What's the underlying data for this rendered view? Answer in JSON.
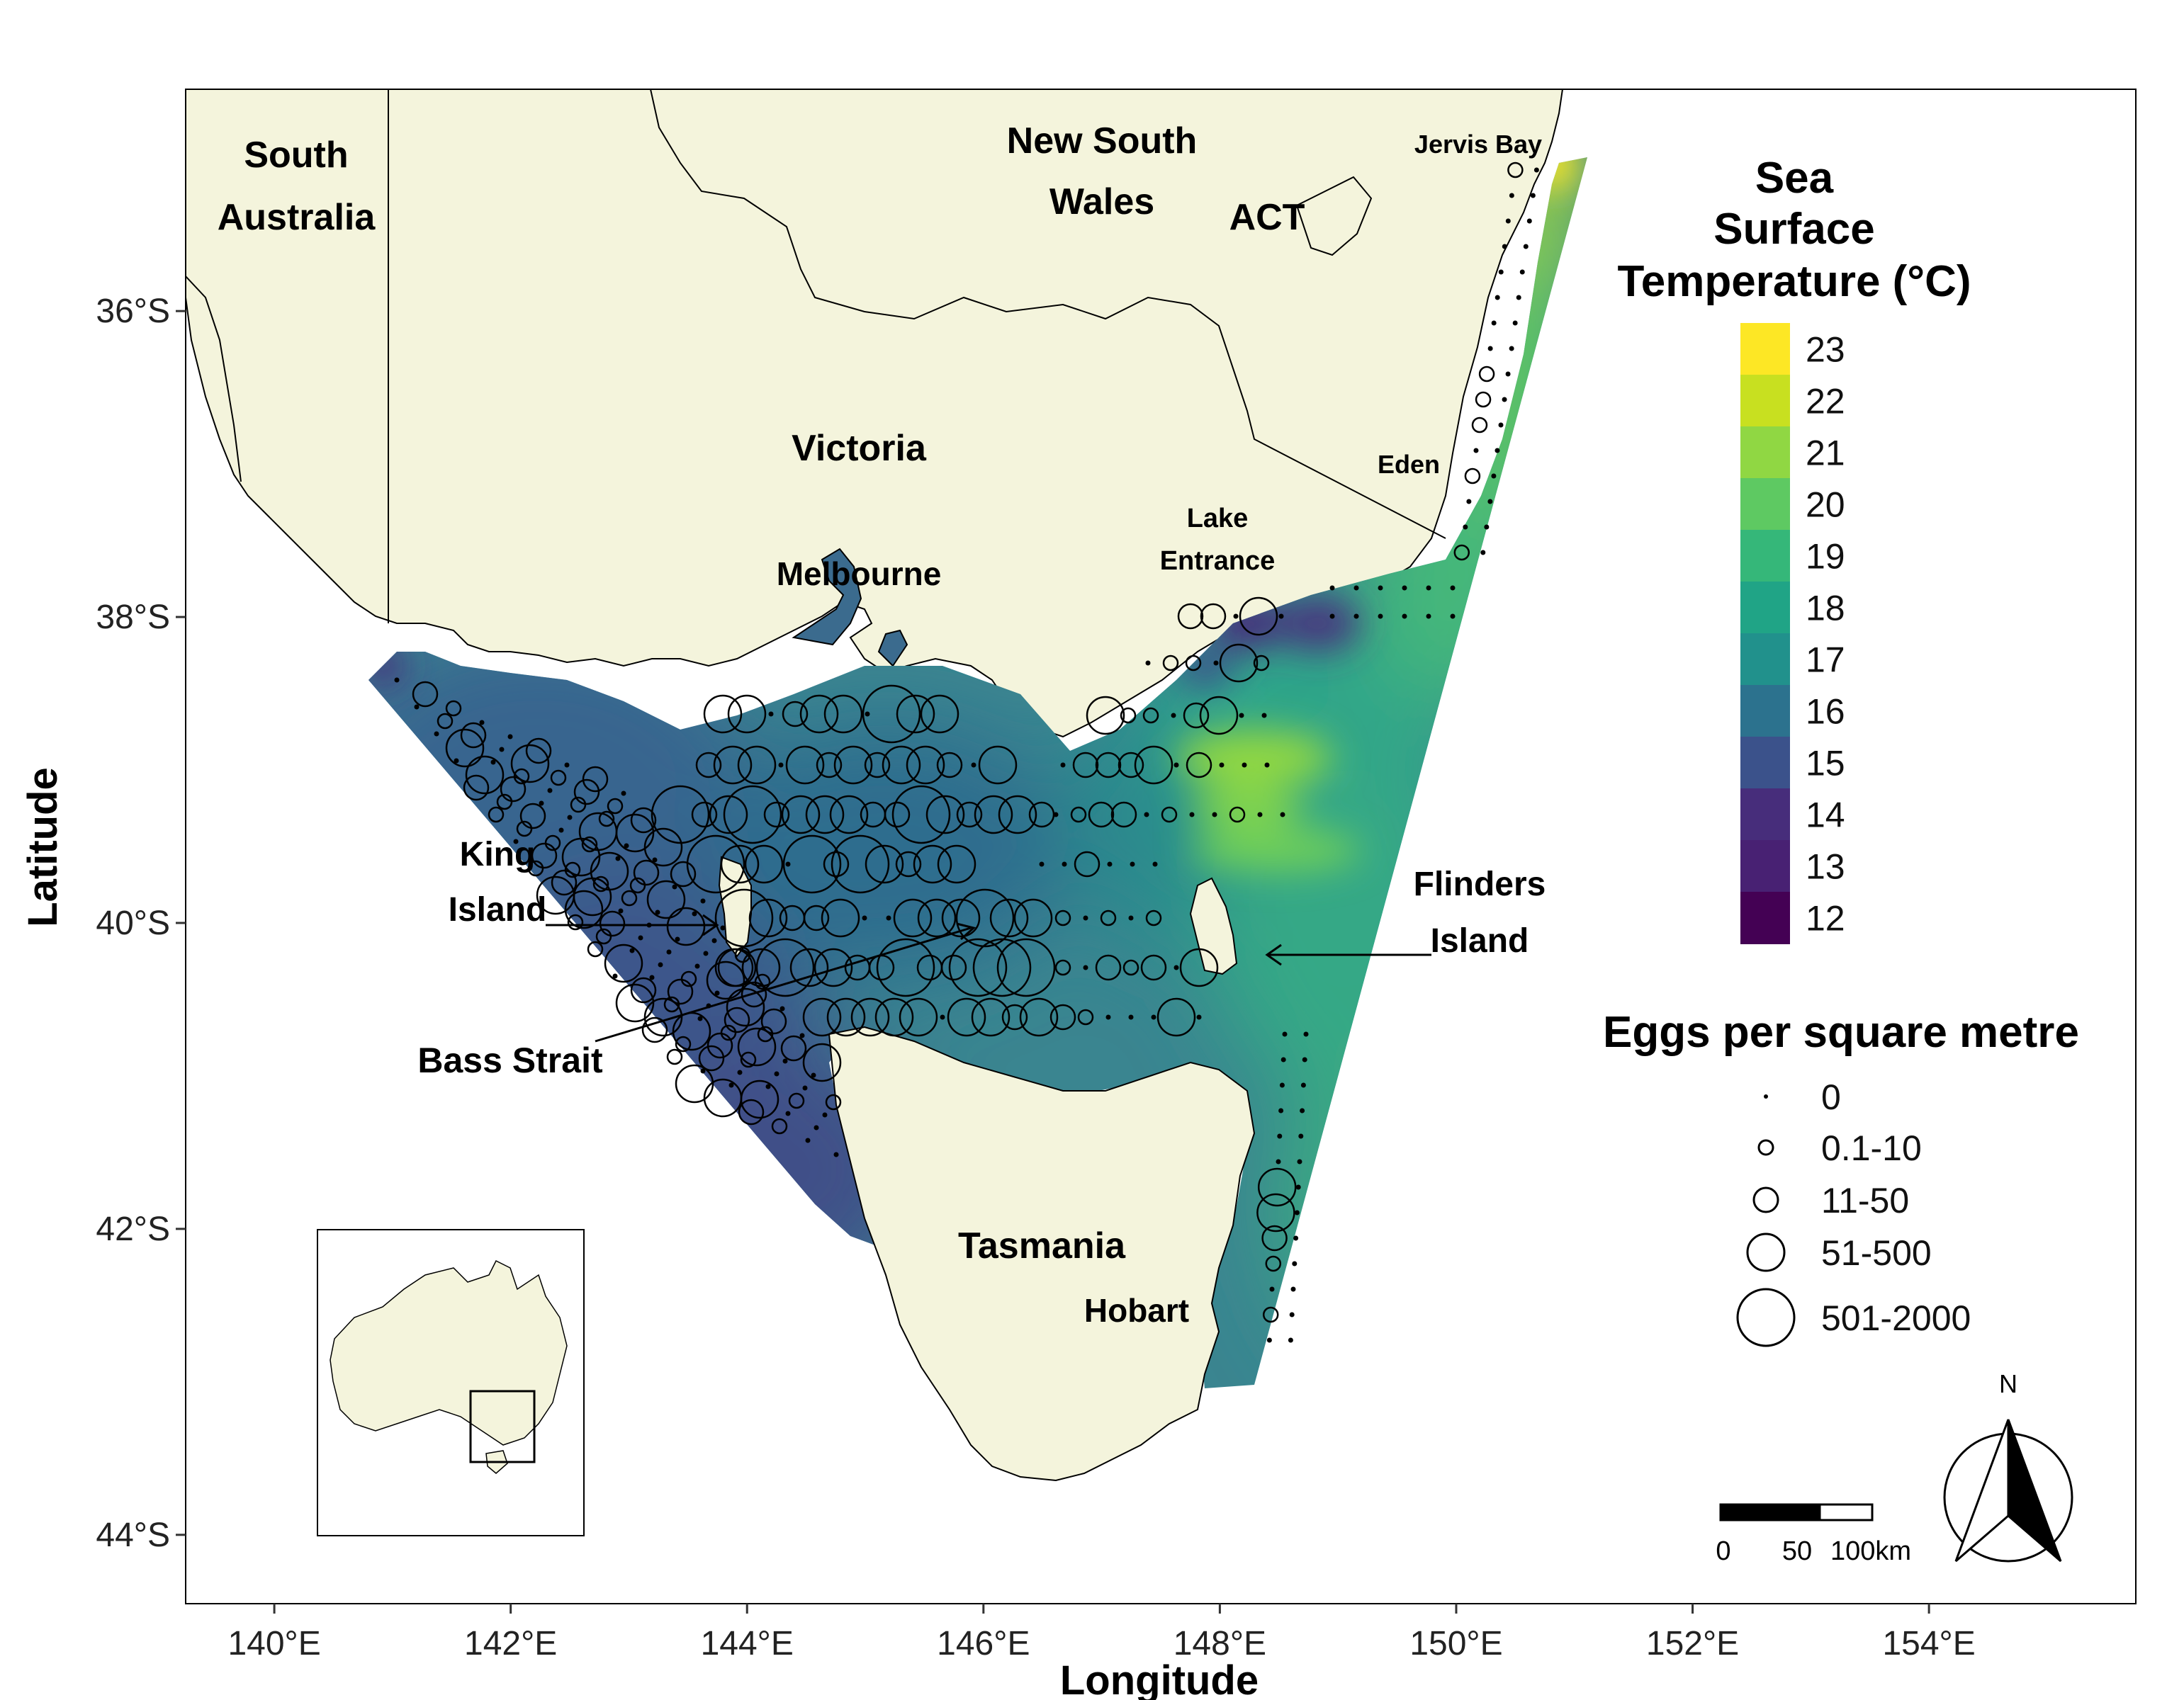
{
  "axes": {
    "xlabel": "Longitude",
    "ylabel": "Latitude",
    "xticks": [
      {
        "value": 140,
        "label": "140°E"
      },
      {
        "value": 142,
        "label": "142°E"
      },
      {
        "value": 144,
        "label": "144°E"
      },
      {
        "value": 146,
        "label": "146°E"
      },
      {
        "value": 148,
        "label": "148°E"
      },
      {
        "value": 150,
        "label": "150°E"
      },
      {
        "value": 152,
        "label": "152°E"
      },
      {
        "value": 154,
        "label": "154°E"
      }
    ],
    "yticks": [
      {
        "value": -36,
        "label": "36°S"
      },
      {
        "value": -38,
        "label": "38°S"
      },
      {
        "value": -40,
        "label": "40°S"
      },
      {
        "value": -42,
        "label": "42°S"
      },
      {
        "value": -44,
        "label": "44°S"
      }
    ],
    "xlim": [
      139.25,
      155.75
    ],
    "ylim": [
      -44.45,
      -34.55
    ]
  },
  "regions": {
    "south_australia": [
      "South",
      "Australia"
    ],
    "new_south_wales": [
      "New South",
      "Wales"
    ],
    "act": "ACT",
    "victoria": "Victoria",
    "tasmania": "Tasmania"
  },
  "places": {
    "jervis_bay": "Jervis Bay",
    "eden": "Eden",
    "lake_entrance": [
      "Lake",
      "Entrance"
    ],
    "melbourne": "Melbourne",
    "hobart": "Hobart",
    "king_island": [
      "King",
      "Island"
    ],
    "flinders_island": [
      "Flinders",
      "Island"
    ],
    "bass_strait": "Bass Strait"
  },
  "sst_legend": {
    "title": [
      "Sea",
      "Surface",
      "Temperature (°C)"
    ],
    "items": [
      {
        "label": "23",
        "color": "#fde725"
      },
      {
        "label": "22",
        "color": "#c8e020"
      },
      {
        "label": "21",
        "color": "#90d743"
      },
      {
        "label": "20",
        "color": "#5ec962"
      },
      {
        "label": "19",
        "color": "#35b779"
      },
      {
        "label": "18",
        "color": "#20a486"
      },
      {
        "label": "17",
        "color": "#21918c"
      },
      {
        "label": "16",
        "color": "#2c728e"
      },
      {
        "label": "15",
        "color": "#3b528b"
      },
      {
        "label": "14",
        "color": "#472d7b"
      },
      {
        "label": "13",
        "color": "#482173"
      },
      {
        "label": "12",
        "color": "#440154"
      }
    ]
  },
  "eggs_legend": {
    "title": "Eggs per square metre",
    "items": [
      {
        "label": "0"
      },
      {
        "label": "0.1-10"
      },
      {
        "label": "11-50"
      },
      {
        "label": "51-500"
      },
      {
        "label": "501-2000"
      }
    ]
  },
  "scale_bar": {
    "labels": [
      "0",
      "50",
      "100km"
    ]
  },
  "north_arrow": {
    "label": "N"
  },
  "colors": {
    "land": "#f4f4dc",
    "border": "#000000",
    "panel": "#ffffff"
  }
}
